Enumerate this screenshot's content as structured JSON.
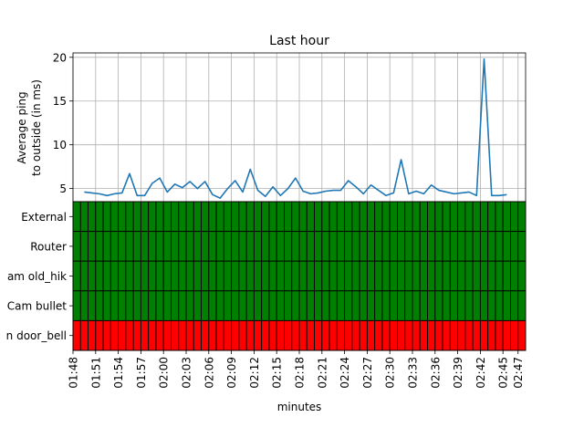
{
  "chart_data": [
    {
      "type": "line",
      "title": "Last hour",
      "ylabel_lines": [
        "Average ping",
        "to outside (in ms)"
      ],
      "ylim": [
        3.5,
        20.5
      ],
      "yticks": [
        5,
        10,
        15,
        20
      ],
      "grid": true,
      "series": [
        {
          "color": "#1f77b4",
          "x": [
            1.5,
            2.5,
            3.5,
            4.5,
            5.5,
            6.5,
            7.5,
            8.5,
            9.5,
            10.5,
            11.5,
            12.5,
            13.5,
            14.5,
            15.5,
            16.5,
            17.5,
            18.5,
            19.5,
            20.5,
            21.5,
            22.5,
            23.5,
            24.5,
            25.5,
            26.5,
            27.5,
            28.5,
            29.5,
            30.5,
            31.5,
            32.5,
            33.5,
            34.5,
            35.5,
            36.5,
            37.5,
            38.5,
            39.5,
            40.5,
            41.5,
            42.5,
            43.5,
            44.5,
            45.5,
            46.5,
            47.5,
            48.5,
            49.5,
            50.5,
            51.5,
            52.5,
            53.5,
            54.5,
            55.5,
            56.5,
            57.5
          ],
          "values": [
            4.6,
            4.5,
            4.4,
            4.2,
            4.4,
            4.5,
            6.7,
            4.2,
            4.2,
            5.6,
            6.2,
            4.6,
            5.5,
            5.1,
            5.8,
            5.0,
            5.8,
            4.3,
            3.9,
            5.0,
            5.9,
            4.6,
            7.2,
            4.8,
            4.1,
            5.2,
            4.2,
            5.0,
            6.2,
            4.7,
            4.4,
            4.5,
            4.7,
            4.8,
            4.8,
            5.9,
            5.2,
            4.4,
            5.4,
            4.8,
            4.2,
            4.5,
            8.3,
            4.4,
            4.7,
            4.4,
            5.4,
            4.8,
            4.6,
            4.4,
            4.5,
            4.6,
            4.2,
            19.8,
            4.2,
            4.2,
            4.3
          ]
        }
      ]
    },
    {
      "type": "heatmap",
      "rows": [
        "External",
        "Router",
        "am old_hik",
        "Cam bullet",
        "n door_bell"
      ],
      "row_status": [
        "up",
        "up",
        "up",
        "up",
        "down"
      ],
      "columns": 60,
      "colors": {
        "up": "#008000",
        "down": "#ff0000",
        "cell_border": "#000000"
      },
      "xlabel": "minutes",
      "x_tick_labels": [
        "01:48",
        "01:51",
        "01:54",
        "01:57",
        "02:00",
        "02:03",
        "02:06",
        "02:09",
        "02:12",
        "02:15",
        "02:18",
        "02:21",
        "02:24",
        "02:27",
        "02:30",
        "02:33",
        "02:36",
        "02:39",
        "02:42",
        "02:45",
        "02:47"
      ],
      "x_tick_positions": [
        0,
        3,
        6,
        9,
        12,
        15,
        18,
        21,
        24,
        27,
        30,
        33,
        36,
        39,
        42,
        45,
        48,
        51,
        54,
        57,
        59
      ]
    }
  ]
}
